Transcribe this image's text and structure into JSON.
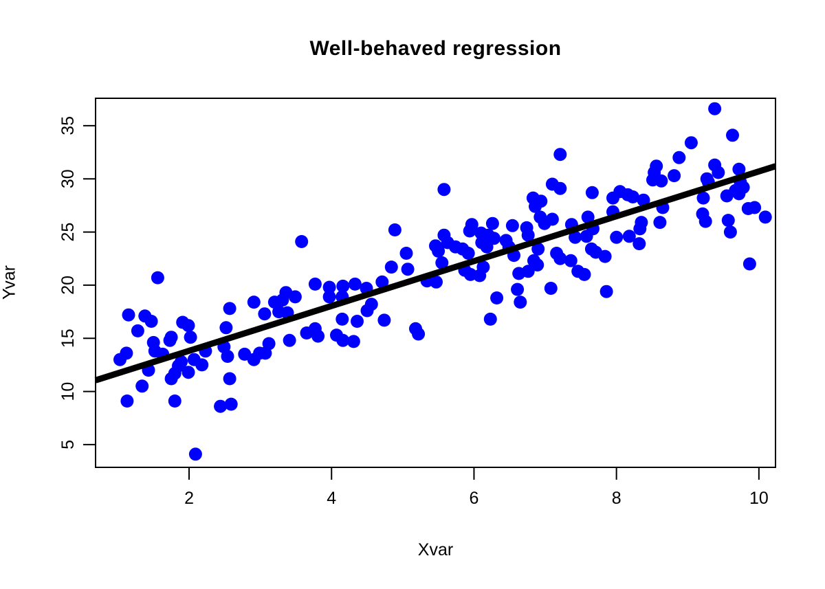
{
  "title": "Well-behaved regression",
  "chart_data": {
    "type": "scatter",
    "title": "Well-behaved regression",
    "xlabel": "Xvar",
    "ylabel": "Yvar",
    "xlim": [
      0.687,
      10.233
    ],
    "ylim": [
      2.86,
      37.58
    ],
    "x_ticks": [
      2,
      4,
      6,
      8,
      10
    ],
    "y_ticks": [
      5,
      10,
      15,
      20,
      25,
      30,
      35
    ],
    "grid": false,
    "legend": "none",
    "point_color": "#0000FF",
    "line_color": "#000000",
    "axis_color": "#000000",
    "regression_line": {
      "intercept": 9.6,
      "slope": 2.11
    },
    "points": [
      [
        1.03,
        13.0
      ],
      [
        1.12,
        13.6
      ],
      [
        1.13,
        9.1
      ],
      [
        1.15,
        17.2
      ],
      [
        1.28,
        15.7
      ],
      [
        1.34,
        10.5
      ],
      [
        1.38,
        17.1
      ],
      [
        1.43,
        12.0
      ],
      [
        1.47,
        16.6
      ],
      [
        1.5,
        14.6
      ],
      [
        1.52,
        13.8
      ],
      [
        1.56,
        20.7
      ],
      [
        1.63,
        13.5
      ],
      [
        1.73,
        14.8
      ],
      [
        1.75,
        15.1
      ],
      [
        1.75,
        11.2
      ],
      [
        1.8,
        11.7
      ],
      [
        1.8,
        9.1
      ],
      [
        1.85,
        12.4
      ],
      [
        1.89,
        12.8
      ],
      [
        1.91,
        16.5
      ],
      [
        1.99,
        16.2
      ],
      [
        1.99,
        11.8
      ],
      [
        2.02,
        15.1
      ],
      [
        2.07,
        13.0
      ],
      [
        2.09,
        4.1
      ],
      [
        2.18,
        12.5
      ],
      [
        2.23,
        13.8
      ],
      [
        2.44,
        8.6
      ],
      [
        2.49,
        14.2
      ],
      [
        2.52,
        16.0
      ],
      [
        2.54,
        13.3
      ],
      [
        2.57,
        17.8
      ],
      [
        2.57,
        11.2
      ],
      [
        2.59,
        8.8
      ],
      [
        2.78,
        13.5
      ],
      [
        2.91,
        18.4
      ],
      [
        2.91,
        13.0
      ],
      [
        2.99,
        13.6
      ],
      [
        3.06,
        17.3
      ],
      [
        3.07,
        13.6
      ],
      [
        3.12,
        14.5
      ],
      [
        3.2,
        18.4
      ],
      [
        3.26,
        17.5
      ],
      [
        3.31,
        18.6
      ],
      [
        3.36,
        19.3
      ],
      [
        3.38,
        17.4
      ],
      [
        3.41,
        14.8
      ],
      [
        3.49,
        18.9
      ],
      [
        3.58,
        24.1
      ],
      [
        3.65,
        15.5
      ],
      [
        3.77,
        20.1
      ],
      [
        3.77,
        15.9
      ],
      [
        3.81,
        15.2
      ],
      [
        3.97,
        19.8
      ],
      [
        3.97,
        18.9
      ],
      [
        4.07,
        15.3
      ],
      [
        4.15,
        18.9
      ],
      [
        4.15,
        16.8
      ],
      [
        4.16,
        19.9
      ],
      [
        4.16,
        14.8
      ],
      [
        4.31,
        14.7
      ],
      [
        4.33,
        20.1
      ],
      [
        4.36,
        16.6
      ],
      [
        4.49,
        19.7
      ],
      [
        4.5,
        17.6
      ],
      [
        4.56,
        18.2
      ],
      [
        4.71,
        20.3
      ],
      [
        4.74,
        16.7
      ],
      [
        4.84,
        21.7
      ],
      [
        4.89,
        25.2
      ],
      [
        5.05,
        23.0
      ],
      [
        5.07,
        21.5
      ],
      [
        5.18,
        15.9
      ],
      [
        5.22,
        15.4
      ],
      [
        5.34,
        20.4
      ],
      [
        5.46,
        23.7
      ],
      [
        5.47,
        20.3
      ],
      [
        5.5,
        23.2
      ],
      [
        5.55,
        22.1
      ],
      [
        5.58,
        29.0
      ],
      [
        5.58,
        24.7
      ],
      [
        5.63,
        24.0
      ],
      [
        5.74,
        23.6
      ],
      [
        5.84,
        23.4
      ],
      [
        5.87,
        21.4
      ],
      [
        5.92,
        23.0
      ],
      [
        5.94,
        25.1
      ],
      [
        5.95,
        21.0
      ],
      [
        5.97,
        25.7
      ],
      [
        6.08,
        20.9
      ],
      [
        6.1,
        24.9
      ],
      [
        6.11,
        24.0
      ],
      [
        6.13,
        21.7
      ],
      [
        6.18,
        23.6
      ],
      [
        6.2,
        24.7
      ],
      [
        6.23,
        16.8
      ],
      [
        6.26,
        25.8
      ],
      [
        6.28,
        24.4
      ],
      [
        6.32,
        18.8
      ],
      [
        6.45,
        24.2
      ],
      [
        6.49,
        23.6
      ],
      [
        6.54,
        25.6
      ],
      [
        6.56,
        22.8
      ],
      [
        6.61,
        19.6
      ],
      [
        6.63,
        21.1
      ],
      [
        6.65,
        18.4
      ],
      [
        6.74,
        25.4
      ],
      [
        6.76,
        24.7
      ],
      [
        6.76,
        21.3
      ],
      [
        6.83,
        28.2
      ],
      [
        6.84,
        22.3
      ],
      [
        6.86,
        27.4
      ],
      [
        6.89,
        21.9
      ],
      [
        6.9,
        23.4
      ],
      [
        6.93,
        26.4
      ],
      [
        6.94,
        27.9
      ],
      [
        6.99,
        25.8
      ],
      [
        7.08,
        19.7
      ],
      [
        7.1,
        29.5
      ],
      [
        7.1,
        26.2
      ],
      [
        7.16,
        23.0
      ],
      [
        7.21,
        32.3
      ],
      [
        7.21,
        29.1
      ],
      [
        7.21,
        22.5
      ],
      [
        7.36,
        22.3
      ],
      [
        7.37,
        25.7
      ],
      [
        7.42,
        24.5
      ],
      [
        7.46,
        21.3
      ],
      [
        7.55,
        21.0
      ],
      [
        7.58,
        24.6
      ],
      [
        7.6,
        26.4
      ],
      [
        7.65,
        23.4
      ],
      [
        7.66,
        28.7
      ],
      [
        7.67,
        25.3
      ],
      [
        7.71,
        23.1
      ],
      [
        7.84,
        22.7
      ],
      [
        7.86,
        19.4
      ],
      [
        7.95,
        28.2
      ],
      [
        7.95,
        26.9
      ],
      [
        8.0,
        24.5
      ],
      [
        8.05,
        28.8
      ],
      [
        8.16,
        28.5
      ],
      [
        8.18,
        24.6
      ],
      [
        8.23,
        28.3
      ],
      [
        8.32,
        23.9
      ],
      [
        8.33,
        25.3
      ],
      [
        8.35,
        25.9
      ],
      [
        8.38,
        28.0
      ],
      [
        8.51,
        29.9
      ],
      [
        8.53,
        30.6
      ],
      [
        8.56,
        31.2
      ],
      [
        8.61,
        25.9
      ],
      [
        8.63,
        29.8
      ],
      [
        8.65,
        27.3
      ],
      [
        8.81,
        30.3
      ],
      [
        8.88,
        32.0
      ],
      [
        9.05,
        33.4
      ],
      [
        9.21,
        26.7
      ],
      [
        9.22,
        28.2
      ],
      [
        9.25,
        26.0
      ],
      [
        9.27,
        30.0
      ],
      [
        9.29,
        29.7
      ],
      [
        9.38,
        36.6
      ],
      [
        9.38,
        31.3
      ],
      [
        9.43,
        30.6
      ],
      [
        9.55,
        28.4
      ],
      [
        9.57,
        26.1
      ],
      [
        9.6,
        25.0
      ],
      [
        9.63,
        34.1
      ],
      [
        9.67,
        28.9
      ],
      [
        9.72,
        30.9
      ],
      [
        9.72,
        28.6
      ],
      [
        9.74,
        29.7
      ],
      [
        9.78,
        29.2
      ],
      [
        9.85,
        27.2
      ],
      [
        9.87,
        22.0
      ],
      [
        9.94,
        27.3
      ],
      [
        10.09,
        26.4
      ]
    ]
  }
}
